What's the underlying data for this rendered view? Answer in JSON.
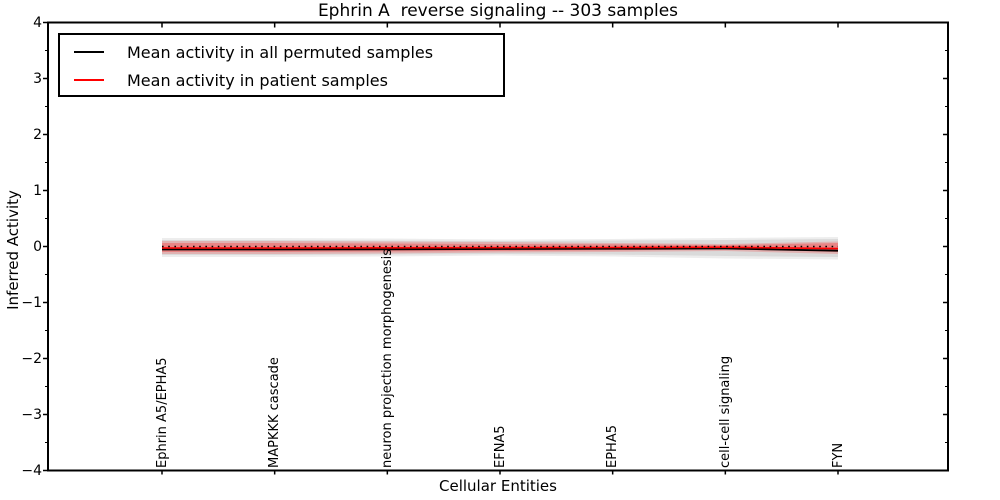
{
  "figure": {
    "title": "Ephrin A  reverse signaling -- 303 samples",
    "xlabel": "Cellular Entities",
    "ylabel": "Inferred Activity"
  },
  "legend": {
    "items": [
      {
        "label": "Mean activity in all permuted samples",
        "color": "#000000"
      },
      {
        "label": "Mean activity in patient samples",
        "color": "#ff0000"
      }
    ]
  },
  "chart_data": {
    "type": "line",
    "title": "Ephrin A  reverse signaling -- 303 samples",
    "xlabel": "Cellular Entities",
    "ylabel": "Inferred Activity",
    "ylim": [
      -4,
      4
    ],
    "ytick_minor_step": 0.5,
    "grid": false,
    "legend_position": "upper left",
    "yticks": [
      {
        "v": 4,
        "label": "4"
      },
      {
        "v": 3,
        "label": "3"
      },
      {
        "v": 2,
        "label": "2"
      },
      {
        "v": 1,
        "label": "1"
      },
      {
        "v": 0,
        "label": "0"
      },
      {
        "v": -1,
        "label": "−1"
      },
      {
        "v": -2,
        "label": "−2"
      },
      {
        "v": -3,
        "label": "−3"
      },
      {
        "v": -4,
        "label": "−4"
      }
    ],
    "categories": [
      "Ephrin A5/EPHA5",
      "MAPKKK cascade",
      "neuron projection morphogenesis",
      "EFNA5",
      "EPHA5",
      "cell-cell signaling",
      "FYN"
    ],
    "series": [
      {
        "name": "Mean activity in all permuted samples",
        "color": "#000000",
        "style": "solid",
        "width": 1.8,
        "values": [
          -0.054,
          -0.054,
          -0.05,
          -0.045,
          -0.04,
          -0.036,
          -0.075
        ]
      },
      {
        "name": "Mean activity in patient samples",
        "color": "#ff0000",
        "style": "solid",
        "width": 1.6,
        "values": [
          -0.027,
          -0.027,
          -0.023,
          -0.02,
          -0.018,
          -0.013,
          -0.036
        ]
      },
      {
        "name": "zero-reference",
        "color": "#000000",
        "style": "dotted",
        "width": 1.6,
        "values": [
          0,
          0,
          0,
          0,
          0,
          0,
          0
        ]
      }
    ],
    "bands": [
      {
        "name": "permuted-samples-outer-band",
        "color": "#000000",
        "opacity": 0.07,
        "upper": [
          0.152,
          0.152,
          0.143,
          0.125,
          0.134,
          0.152,
          0.17
        ],
        "lower": [
          -0.188,
          -0.188,
          -0.179,
          -0.161,
          -0.179,
          -0.214,
          -0.232
        ]
      },
      {
        "name": "permuted-samples-inner-band",
        "color": "#000000",
        "opacity": 0.08,
        "upper": [
          0.116,
          0.116,
          0.107,
          0.098,
          0.107,
          0.116,
          0.134
        ],
        "lower": [
          -0.152,
          -0.152,
          -0.143,
          -0.134,
          -0.143,
          -0.17,
          -0.188
        ]
      },
      {
        "name": "patient-samples-outer-band",
        "color": "#ff0000",
        "opacity": 0.18,
        "upper": [
          0.098,
          0.098,
          0.089,
          0.08,
          0.063,
          0.045,
          0.089
        ],
        "lower": [
          -0.134,
          -0.134,
          -0.125,
          -0.107,
          -0.098,
          -0.08,
          -0.134
        ]
      },
      {
        "name": "patient-samples-inner-band",
        "color": "#ff0000",
        "opacity": 0.25,
        "upper": [
          0.063,
          0.063,
          0.054,
          0.045,
          0.04,
          0.027,
          0.063
        ],
        "lower": [
          -0.098,
          -0.098,
          -0.089,
          -0.08,
          -0.07,
          -0.05,
          -0.098
        ]
      }
    ]
  }
}
